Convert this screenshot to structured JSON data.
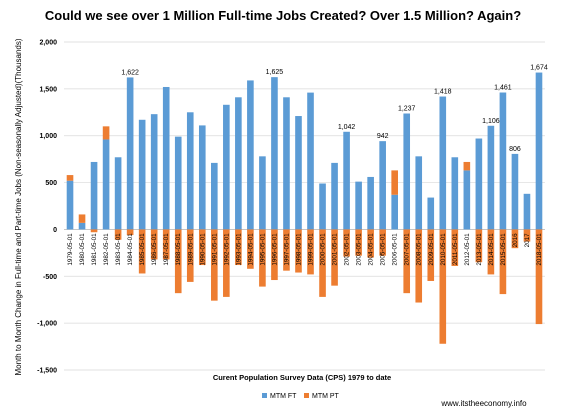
{
  "chart_data": {
    "type": "bar",
    "title": "Could we see over 1 Million Full-time Jobs Created? Over 1.5 Million? Again?",
    "xlabel": "Curent Population Survey Data (CPS) 1979 to date",
    "ylabel": "Month to Month Change in Full-time and Part-time Jobs (Non-seasonally Adjusted)(Thousands)",
    "ylim": [
      -1500,
      2000
    ],
    "yticks": [
      "-1,500",
      "-1,000",
      "-500",
      "0",
      "500",
      "1,000",
      "1,500",
      "2,000"
    ],
    "grid": true,
    "legend_position": "bottom-center",
    "categories": [
      "1979-05-01",
      "1980-05-01",
      "1981-05-01",
      "1982-05-01",
      "1983-05-01",
      "1984-05-01",
      "1985-05-01",
      "1986-05-01",
      "1987-05-01",
      "1988-05-01",
      "1989-05-01",
      "1990-05-01",
      "1991-05-01",
      "1992-05-01",
      "1993-05-01",
      "1994-05-01",
      "1995-05-01",
      "1996-05-01",
      "1997-05-01",
      "1998-05-01",
      "1999-05-01",
      "2000-05-01",
      "2001-05-01",
      "2002-05-01",
      "2003-05-01",
      "2004-05-01",
      "2005-05-01",
      "2006-05-01",
      "2007-05-01",
      "2008-05-01",
      "2009-05-01",
      "2010-05-01",
      "2011-05-01",
      "2012-05-01",
      "2013-05-01",
      "2014-05-01",
      "2015-05-01",
      "2016-05-01",
      "2017-05-01",
      "2018-05-01"
    ],
    "xtick_labels": [
      "1979-05-01",
      "1980-05-01",
      "1981-05-01",
      "1982-05-01",
      "1983-05-01",
      "1984-05-01",
      "1985-05-01",
      "1986-05-01",
      "1987-05-01",
      "1988-05-01",
      "1989-05-01",
      "1990-05-01",
      "1991-05-01",
      "1992-05-01",
      "1993-05-01",
      "1994-05-01",
      "1995-05-01",
      "1996-05-01",
      "1997-05-01",
      "1998-05-01",
      "1999-05-01",
      "2000-05-01",
      "2001-05-01",
      "2002-05-01",
      "2003-05-01",
      "2004-05-01",
      "2005-05-01",
      "2006-05-01",
      "2007-05-01",
      "2008-05-01",
      "2009-05-01",
      "2010-05-01",
      "2011-05-01",
      "2012-05-01",
      "2013-05-01",
      "2014-05-01",
      "2015-05-01",
      "2016",
      "2017",
      "2018-05-01"
    ],
    "series": [
      {
        "name": "MTM FT",
        "color": "#5b9bd5",
        "values": [
          520,
          70,
          720,
          960,
          770,
          1622,
          1170,
          1230,
          1520,
          990,
          1250,
          1110,
          710,
          1330,
          1410,
          1590,
          780,
          1625,
          1410,
          1210,
          1460,
          490,
          710,
          1042,
          510,
          560,
          942,
          370,
          1237,
          780,
          340,
          1418,
          770,
          630,
          970,
          1106,
          1461,
          806,
          380,
          1674
        ]
      },
      {
        "name": "MTM PT",
        "color": "#ed7d31",
        "values": [
          60,
          90,
          -30,
          140,
          -110,
          -60,
          -470,
          -320,
          -320,
          -680,
          -560,
          -380,
          -760,
          -720,
          -380,
          -420,
          -610,
          -540,
          -440,
          -460,
          -480,
          -720,
          -600,
          -290,
          -280,
          -300,
          -280,
          260,
          -680,
          -780,
          -550,
          -1220,
          -390,
          90,
          -350,
          -480,
          -690,
          -200,
          -130,
          -1010
        ]
      }
    ],
    "data_labels": [
      {
        "index": 5,
        "text": "1,622"
      },
      {
        "index": 17,
        "text": "1,625"
      },
      {
        "index": 23,
        "text": "1,042"
      },
      {
        "index": 26,
        "text": "942"
      },
      {
        "index": 28,
        "text": "1,237"
      },
      {
        "index": 31,
        "text": "1,418"
      },
      {
        "index": 35,
        "text": "1,106"
      },
      {
        "index": 36,
        "text": "1,461"
      },
      {
        "index": 37,
        "text": "806"
      },
      {
        "index": 39,
        "text": "1,674"
      }
    ]
  },
  "source": "www.itstheeconomy.info"
}
